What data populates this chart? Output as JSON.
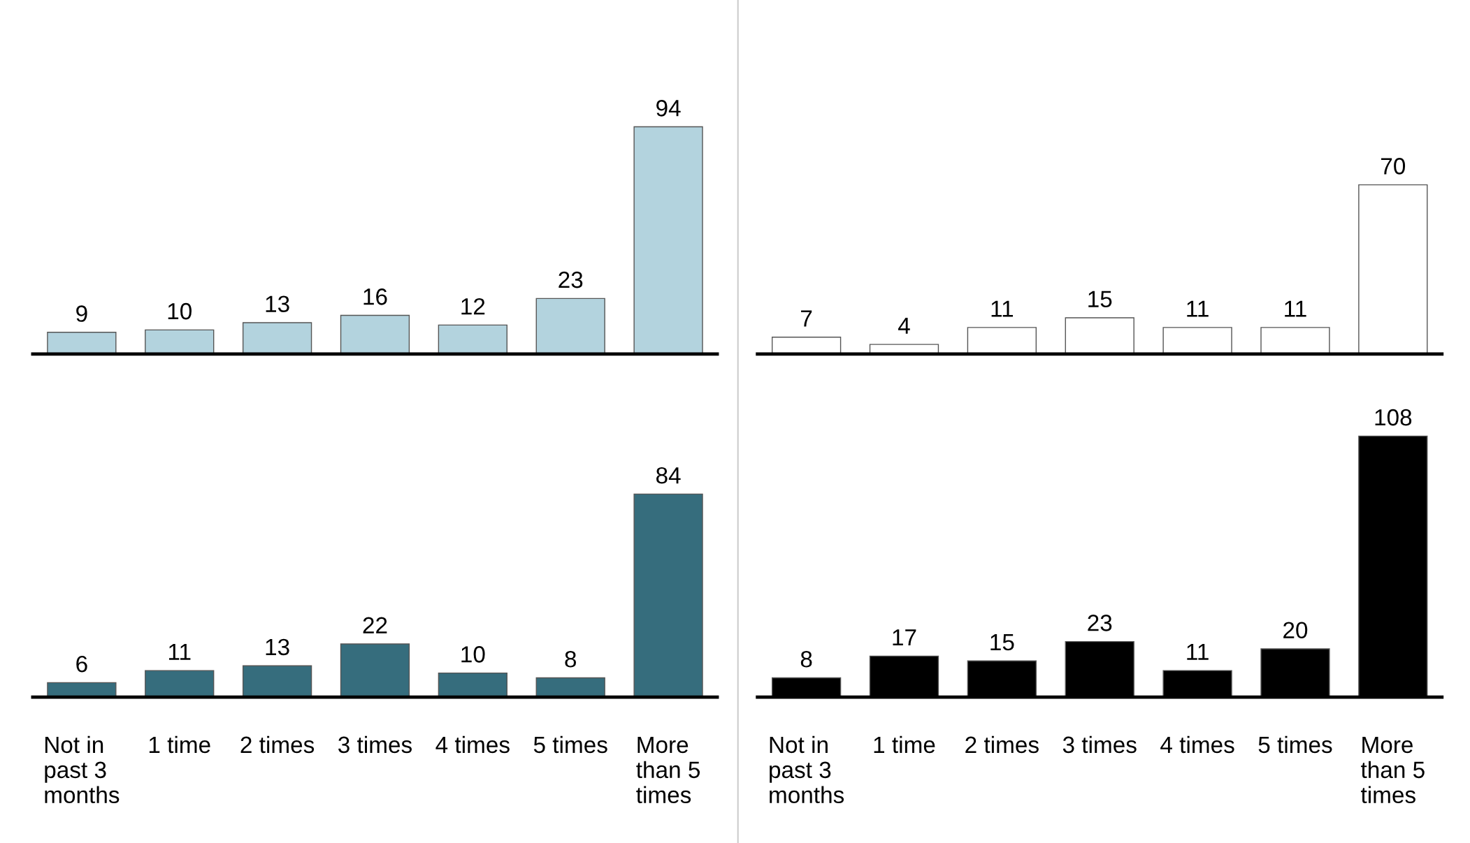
{
  "chart_data": [
    {
      "type": "bar",
      "categories": [
        null,
        null,
        null,
        null,
        null,
        null,
        null
      ],
      "values": [
        9,
        10,
        13,
        16,
        12,
        23,
        94
      ],
      "color": "#b3d3de",
      "data_labels": true,
      "tick_labels": false
    },
    {
      "type": "bar",
      "categories": [
        null,
        null,
        null,
        null,
        null,
        null,
        null
      ],
      "values": [
        7,
        4,
        11,
        15,
        11,
        11,
        70
      ],
      "color": "#ffffff",
      "data_labels": true,
      "tick_labels": false
    },
    {
      "type": "bar",
      "categories": [
        "Not in\npast 3\nmonths",
        "1 time",
        "2 times",
        "3 times",
        "4 times",
        "5 times",
        "More\nthan 5\ntimes"
      ],
      "values": [
        6,
        11,
        13,
        22,
        10,
        8,
        84
      ],
      "color": "#366d7d",
      "data_labels": true,
      "tick_labels": "x"
    },
    {
      "type": "bar",
      "categories": [
        "Not in\npast 3\nmonths",
        "1 time",
        "2 times",
        "3 times",
        "4 times",
        "5 times",
        "More\nthan 5\ntimes"
      ],
      "values": [
        8,
        17,
        15,
        23,
        11,
        20,
        108
      ],
      "color": "#000000",
      "data_labels": true,
      "tick_labels": "x"
    }
  ]
}
